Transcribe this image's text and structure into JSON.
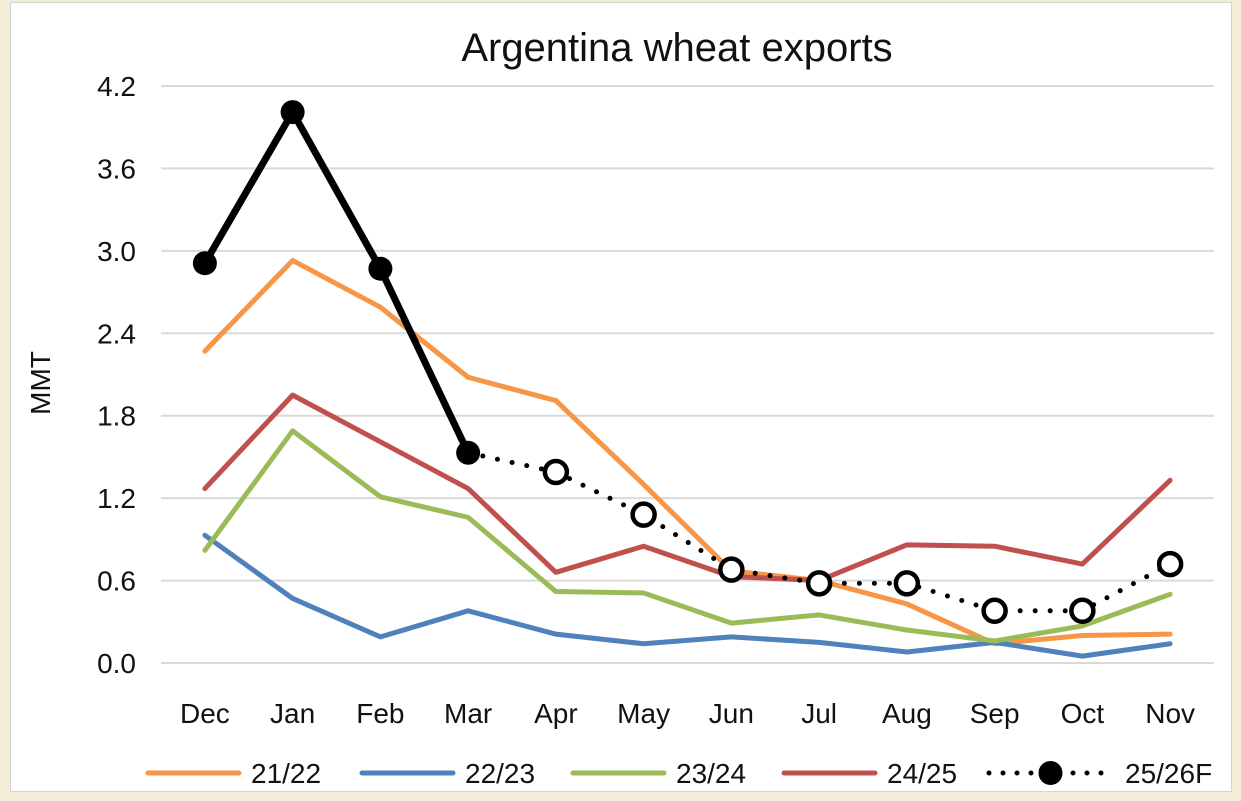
{
  "chart_data": {
    "type": "line",
    "title": "Argentina wheat exports",
    "xlabel": "",
    "ylabel": "MMT",
    "categories": [
      "Dec",
      "Jan",
      "Feb",
      "Mar",
      "Apr",
      "May",
      "Jun",
      "Jul",
      "Aug",
      "Sep",
      "Oct",
      "Nov"
    ],
    "yticks": [
      "0.0",
      "0.6",
      "1.2",
      "1.8",
      "2.4",
      "3.0",
      "3.6",
      "4.2"
    ],
    "ylim": [
      0,
      4.2
    ],
    "grid": true,
    "legend_position": "bottom",
    "series": [
      {
        "name": "21/22",
        "color": "#f79646",
        "style": "solid",
        "values": [
          2.27,
          2.93,
          2.59,
          2.08,
          1.91,
          1.3,
          0.67,
          0.6,
          0.43,
          0.14,
          0.2,
          0.21
        ]
      },
      {
        "name": "22/23",
        "color": "#4f81bd",
        "style": "solid",
        "values": [
          0.93,
          0.47,
          0.19,
          0.38,
          0.21,
          0.14,
          0.19,
          0.15,
          0.08,
          0.15,
          0.05,
          0.14
        ]
      },
      {
        "name": "23/24",
        "color": "#9bbb59",
        "style": "solid",
        "values": [
          0.82,
          1.69,
          1.21,
          1.06,
          0.52,
          0.51,
          0.29,
          0.35,
          0.24,
          0.16,
          0.27,
          0.5
        ]
      },
      {
        "name": "24/25",
        "color": "#c0504d",
        "style": "solid",
        "values": [
          1.27,
          1.95,
          1.61,
          1.27,
          0.66,
          0.85,
          0.63,
          0.6,
          0.86,
          0.85,
          0.72,
          1.33
        ]
      },
      {
        "name": "25/26F",
        "color": "#000000",
        "style": "mixed",
        "values": [
          2.91,
          4.01,
          2.87,
          1.53,
          1.39,
          1.08,
          0.68,
          0.58,
          0.58,
          0.38,
          0.38,
          0.72
        ],
        "actual_through_index": 3
      }
    ]
  }
}
